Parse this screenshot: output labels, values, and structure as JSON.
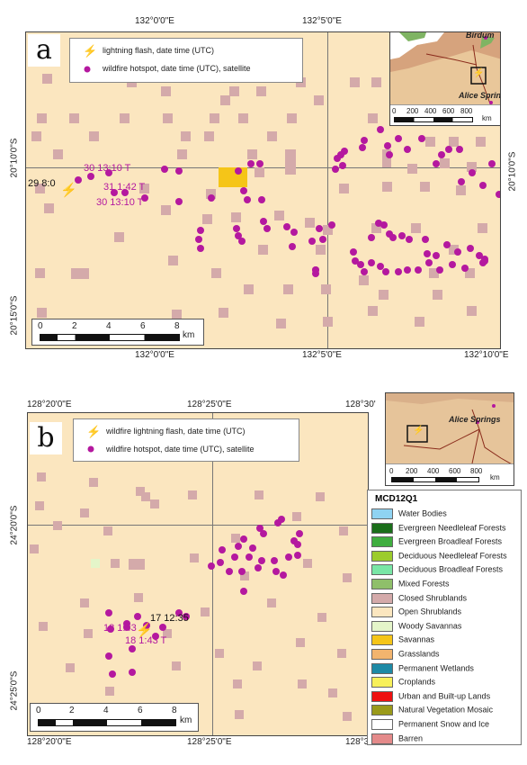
{
  "panel_a": {
    "tag": "a",
    "top_lon_labels": [
      "132°0'0\"E",
      "132°5'0\"E"
    ],
    "bottom_lon_labels": [
      "132°0'0\"E",
      "132°5'0\"E",
      "132°10'0\"E"
    ],
    "left_lat_labels": [
      "20°10'0\"S",
      "20°15'0\"S"
    ],
    "right_lat_labels": [
      "20°10'0\"S"
    ],
    "legend": {
      "lightning": "lightning flash, date time (UTC)",
      "hotspot": "wildfire hotspot, date time (UTC), satellite"
    },
    "annotations": {
      "flash": "29 8:0",
      "h1": "30 13:10  T",
      "h2": "31 1:42  T",
      "h3": "30 13:10  T"
    },
    "scale": {
      "ticks": [
        "0",
        "2",
        "4",
        "6",
        "8"
      ],
      "unit": "km"
    },
    "inset": {
      "towns": [
        "Birdum",
        "Alice Springs"
      ],
      "scale_ticks": [
        "0",
        "200",
        "400",
        "600",
        "800"
      ],
      "unit": "km"
    }
  },
  "panel_b": {
    "tag": "b",
    "top_lon_labels": [
      "128°20'0\"E",
      "128°25'0\"E",
      "128°30'"
    ],
    "bottom_lon_labels": [
      "128°20'0\"E",
      "128°25'0\"E",
      "128°30'"
    ],
    "left_lat_labels": [
      "24°20'0\"S",
      "24°25'0\"S"
    ],
    "legend": {
      "lightning": "wildfire lightning flash, date time (UTC)",
      "hotspot": "wildfire hotspot, date time (UTC), satellite"
    },
    "annotations": {
      "flash": "17 12:35",
      "h1": "18 1:43",
      "h2": "18 1:43  T"
    },
    "scale": {
      "ticks": [
        "0",
        "2",
        "4",
        "6",
        "8"
      ],
      "unit": "km"
    },
    "inset": {
      "towns": [
        "Alice Springs"
      ],
      "scale_ticks": [
        "0",
        "200",
        "400",
        "600",
        "800"
      ],
      "unit": "km"
    }
  },
  "landcover_legend": {
    "title": "MCD12Q1",
    "classes": [
      {
        "name": "Water Bodies",
        "color": "#8fd3f2"
      },
      {
        "name": "Evergreen Needleleaf Forests",
        "color": "#1a6e1a"
      },
      {
        "name": "Evergreen Broadleaf Forests",
        "color": "#3fae3f"
      },
      {
        "name": "Deciduous Needleleaf Forests",
        "color": "#9ccc2c"
      },
      {
        "name": "Deciduous Broadleaf Forests",
        "color": "#79e6a6"
      },
      {
        "name": "Mixed Forests",
        "color": "#8fbf6a"
      },
      {
        "name": "Closed Shrublands",
        "color": "#d4aaaa"
      },
      {
        "name": "Open Shrublands",
        "color": "#fbe6bf"
      },
      {
        "name": "Woody Savannas",
        "color": "#e4f5c9"
      },
      {
        "name": "Savannas",
        "color": "#f5c518"
      },
      {
        "name": "Grasslands",
        "color": "#f2b46e"
      },
      {
        "name": "Permanent Wetlands",
        "color": "#1e8aa6"
      },
      {
        "name": "Croplands",
        "color": "#f7f05a"
      },
      {
        "name": "Urban and Built-up Lands",
        "color": "#ee1111"
      },
      {
        "name": "Natural Vegetation Mosaic",
        "color": "#9a9a1a"
      },
      {
        "name": "Permanent Snow and Ice",
        "color": "#ffffff"
      },
      {
        "name": "Barren",
        "color": "#e48a8a"
      }
    ]
  }
}
